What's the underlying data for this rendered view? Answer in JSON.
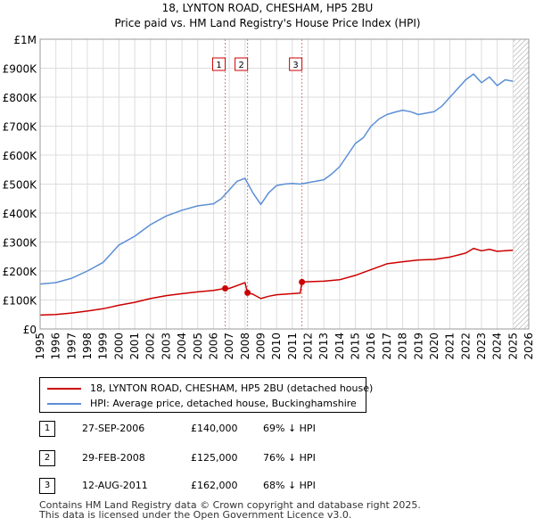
{
  "chart_data": {
    "type": "line",
    "title": "18, LYNTON ROAD, CHESHAM, HP5 2BU",
    "subtitle": "Price paid vs. HM Land Registry's House Price Index (HPI)",
    "xlabel": "",
    "ylabel": "",
    "xlim": [
      1995,
      2026
    ],
    "ylim": [
      0,
      1000000
    ],
    "x_ticks": [
      1995,
      1996,
      1997,
      1998,
      1999,
      2000,
      2001,
      2002,
      2003,
      2004,
      2005,
      2006,
      2007,
      2008,
      2009,
      2010,
      2011,
      2012,
      2013,
      2014,
      2015,
      2016,
      2017,
      2018,
      2019,
      2020,
      2021,
      2022,
      2023,
      2024,
      2025,
      2026
    ],
    "y_ticks": [
      0,
      100000,
      200000,
      300000,
      400000,
      500000,
      600000,
      700000,
      800000,
      900000,
      1000000
    ],
    "y_tick_labels": [
      "£0",
      "£100K",
      "£200K",
      "£300K",
      "£400K",
      "£500K",
      "£600K",
      "£700K",
      "£800K",
      "£900K",
      "£1M"
    ],
    "grid": true,
    "future_hatch_from": 2025.0,
    "series": [
      {
        "name": "18, LYNTON ROAD, CHESHAM, HP5 2BU (detached house)",
        "color": "#cc0000",
        "x": [
          1995.0,
          1996.0,
          1997.0,
          1998.0,
          1999.0,
          2000.0,
          2001.0,
          2002.0,
          2003.0,
          2004.0,
          2005.0,
          2006.0,
          2006.74,
          2007.0,
          2007.5,
          2008.0,
          2008.16,
          2008.5,
          2009.0,
          2009.5,
          2010.0,
          2010.5,
          2011.0,
          2011.5,
          2011.61,
          2012.0,
          2013.0,
          2014.0,
          2015.0,
          2016.0,
          2017.0,
          2018.0,
          2019.0,
          2020.0,
          2021.0,
          2022.0,
          2022.5,
          2023.0,
          2023.5,
          2024.0,
          2024.5,
          2025.0
        ],
        "y": [
          48000,
          50000,
          55000,
          62000,
          70000,
          82000,
          92000,
          105000,
          115000,
          122000,
          128000,
          133000,
          140000,
          140000,
          150000,
          160000,
          125000,
          120000,
          105000,
          113000,
          118000,
          120000,
          122000,
          124000,
          162000,
          163000,
          165000,
          170000,
          185000,
          205000,
          225000,
          232000,
          238000,
          240000,
          248000,
          262000,
          278000,
          270000,
          275000,
          268000,
          270000,
          272000
        ]
      },
      {
        "name": "HPI: Average price, detached house, Buckinghamshire",
        "color": "#5b8fd6",
        "x": [
          1995.0,
          1996.0,
          1997.0,
          1998.0,
          1999.0,
          2000.0,
          2001.0,
          2002.0,
          2003.0,
          2004.0,
          2005.0,
          2006.0,
          2006.5,
          2007.0,
          2007.5,
          2008.0,
          2008.5,
          2009.0,
          2009.5,
          2010.0,
          2010.5,
          2011.0,
          2011.5,
          2012.0,
          2012.5,
          2013.0,
          2013.5,
          2014.0,
          2014.5,
          2015.0,
          2015.5,
          2016.0,
          2016.5,
          2017.0,
          2017.5,
          2018.0,
          2018.5,
          2019.0,
          2019.5,
          2020.0,
          2020.5,
          2021.0,
          2021.5,
          2022.0,
          2022.5,
          2023.0,
          2023.5,
          2024.0,
          2024.5,
          2025.0
        ],
        "y": [
          155000,
          160000,
          175000,
          200000,
          230000,
          290000,
          320000,
          360000,
          390000,
          410000,
          425000,
          432000,
          450000,
          480000,
          510000,
          520000,
          470000,
          430000,
          470000,
          495000,
          500000,
          502000,
          500000,
          505000,
          510000,
          515000,
          535000,
          560000,
          600000,
          640000,
          660000,
          700000,
          725000,
          740000,
          748000,
          755000,
          750000,
          740000,
          745000,
          750000,
          770000,
          800000,
          830000,
          860000,
          880000,
          850000,
          870000,
          840000,
          860000,
          855000
        ]
      }
    ],
    "markers": [
      {
        "label": "1",
        "x": 2006.74,
        "y": 140000
      },
      {
        "label": "2",
        "x": 2008.16,
        "y": 125000
      },
      {
        "label": "3",
        "x": 2011.61,
        "y": 162000
      }
    ]
  },
  "legend": {
    "property": "18, LYNTON ROAD, CHESHAM, HP5 2BU (detached house)",
    "hpi": "HPI: Average price, detached house, Buckinghamshire",
    "property_color": "#cc0000",
    "hpi_color": "#5b8fd6"
  },
  "sales": [
    {
      "num": "1",
      "date": "27-SEP-2006",
      "price": "£140,000",
      "pct": "69% ↓ HPI"
    },
    {
      "num": "2",
      "date": "29-FEB-2008",
      "price": "£125,000",
      "pct": "76% ↓ HPI"
    },
    {
      "num": "3",
      "date": "12-AUG-2011",
      "price": "£162,000",
      "pct": "68% ↓ HPI"
    }
  ],
  "footer": {
    "line1": "Contains HM Land Registry data © Crown copyright and database right 2025.",
    "line2": "This data is licensed under the Open Government Licence v3.0."
  }
}
